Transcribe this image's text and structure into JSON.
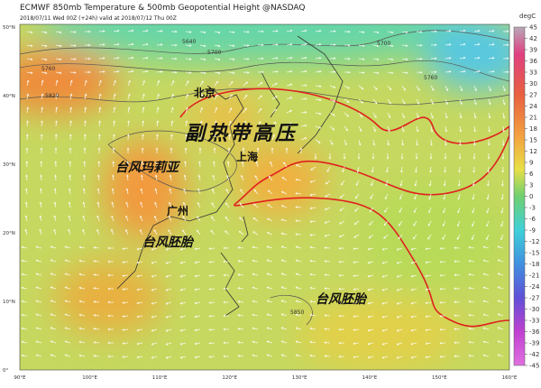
{
  "header": {
    "title": "ECMWF 850mb Temperature & 500mb Geopotential Height @NASDAQ",
    "subtitle": "2018/07/11 Wed 00Z (+24h) valid at 2018/07/12 Thu 00Z"
  },
  "map": {
    "latitude_labels": [
      "50°N",
      "40°N",
      "30°N",
      "20°N",
      "10°N",
      "0°"
    ],
    "longitude_labels": [
      "90°E",
      "100°E",
      "110°E",
      "120°E",
      "130°E",
      "140°E",
      "150°E",
      "160°E"
    ],
    "places": [
      "北京",
      "上海",
      "广州"
    ],
    "annotations": [
      "副热带高压",
      "台风玛莉亚",
      "台风胚胎",
      "台风胚胎"
    ],
    "contour_labels": [
      "5640",
      "5700",
      "5760",
      "5820",
      "5850",
      "5700",
      "5760"
    ]
  },
  "colorbar": {
    "unit": "degC",
    "ticks": [
      45,
      42,
      39,
      36,
      33,
      30,
      27,
      24,
      21,
      18,
      15,
      12,
      9,
      6,
      3,
      0,
      -3,
      -6,
      -9,
      -12,
      -15,
      -18,
      -21,
      -24,
      -27,
      -30,
      -33,
      -36,
      -39,
      -42,
      -45
    ]
  }
}
